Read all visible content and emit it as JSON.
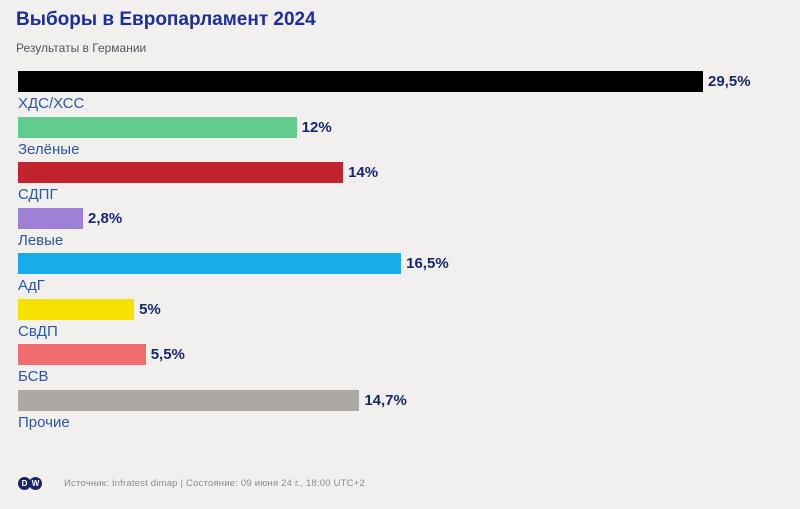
{
  "page": {
    "background_color": "#f2f0ee"
  },
  "header": {
    "title": "Выборы в Европарламент 2024",
    "subtitle": "Результаты в Германии"
  },
  "chart_data": {
    "type": "bar",
    "orientation": "horizontal",
    "title": "Выборы в Европарламент 2024",
    "subtitle": "Результаты в Германии",
    "categories": [
      "ХДС/ХСС",
      "Зелёные",
      "СДПГ",
      "Левые",
      "АдГ",
      "СвДП",
      "БСВ",
      "Прочие"
    ],
    "values": [
      29.5,
      12,
      14,
      2.8,
      16.5,
      5,
      5.5,
      14.7
    ],
    "value_labels": [
      "29,5%",
      "12%",
      "14%",
      "2,8%",
      "16,5%",
      "5%",
      "5,5%",
      "14,7%"
    ],
    "bar_colors": [
      "#000000",
      "#62cb8e",
      "#c2242d",
      "#a07fd6",
      "#18ade9",
      "#f6e100",
      "#f16c6c",
      "#aba8a5"
    ],
    "xlim": [
      0,
      29.5
    ],
    "grid": false,
    "legend": false,
    "value_label_position": "right-of-bar",
    "category_label_position": "below-bar"
  },
  "footer": {
    "logo": "DW",
    "logo_letters": [
      "D",
      "W"
    ],
    "source": "Источник: Infratest dimap | Состояние: 09 июня 24 г., 18:00 UTC+2"
  },
  "colors": {
    "title": "#1b2e9c",
    "subtitle": "#55555e",
    "value_label": "#18266e",
    "category_label": "#2d57a1",
    "footer_text": "#8b8a92",
    "logo_navy": "#1b2366",
    "background": "#f2f0ee"
  }
}
